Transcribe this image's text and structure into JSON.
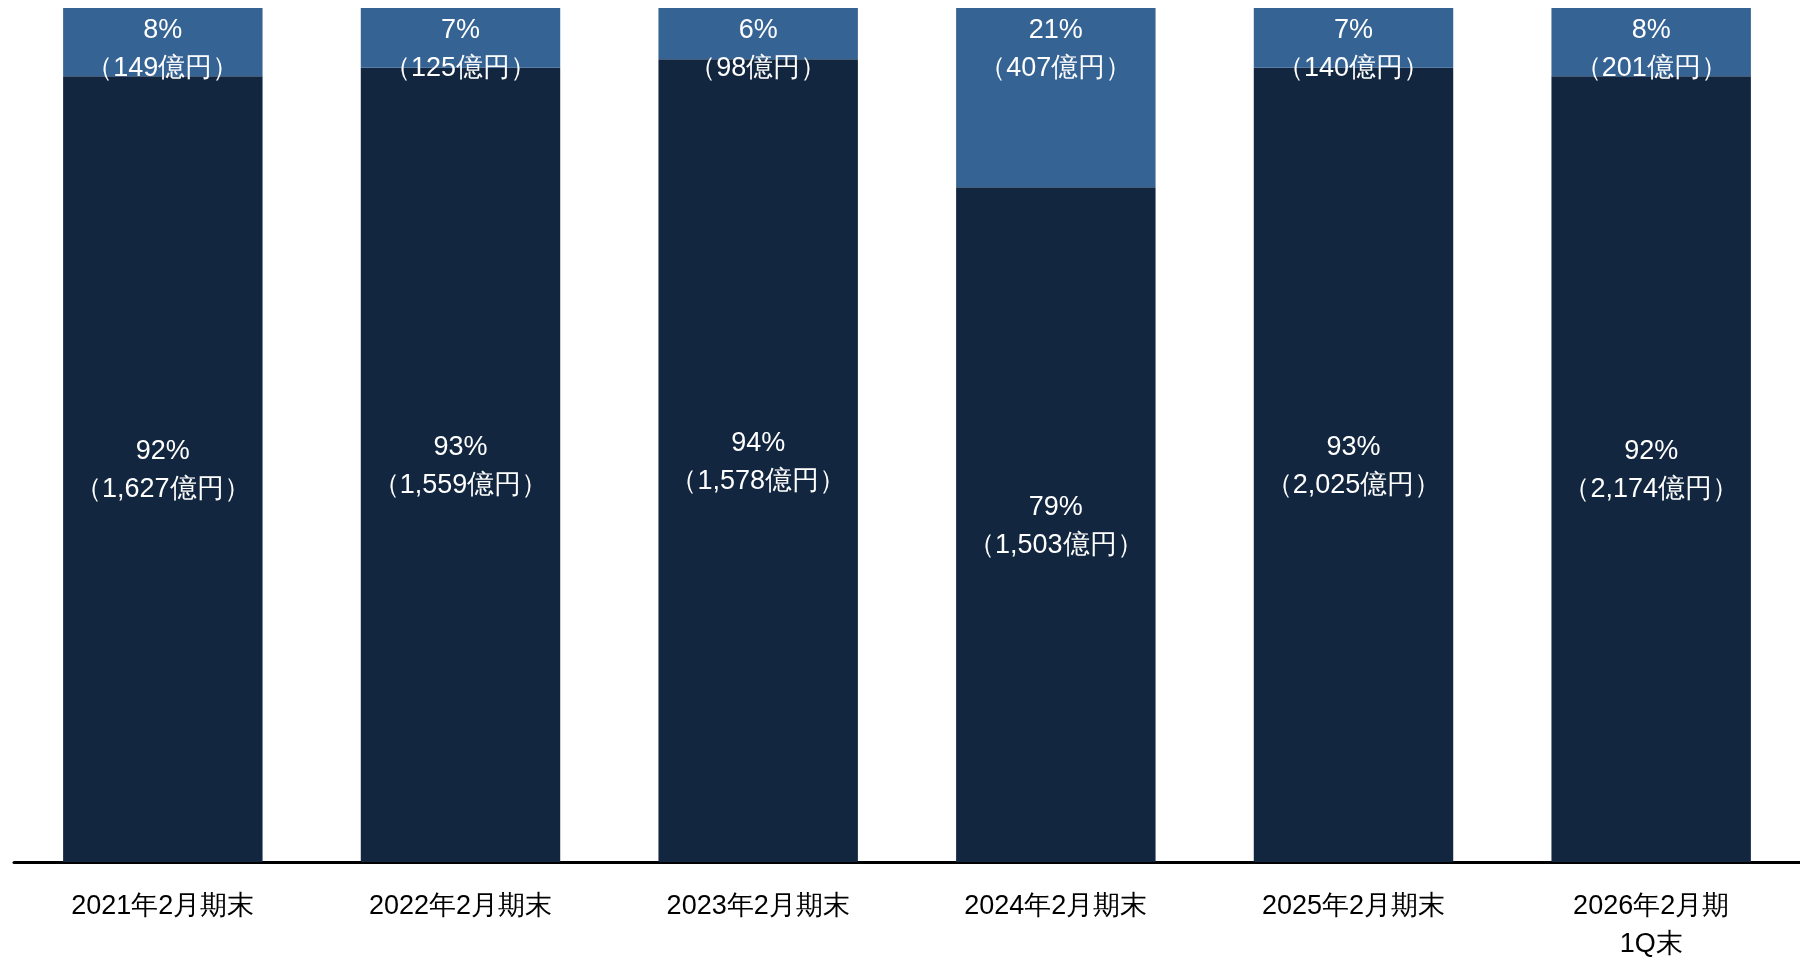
{
  "chart_data": {
    "type": "bar",
    "stacked": true,
    "categories": [
      "2021年2月期末",
      "2022年2月期末",
      "2023年2月期末",
      "2024年2月期末",
      "2025年2月期末",
      "2026年2月期 1Q末"
    ],
    "series": [
      {
        "color": "#12263f",
        "values": [
          92,
          93,
          94,
          79,
          93,
          92
        ],
        "value_labels": [
          "92%\n（1,627億円）",
          "93%\n（1,559億円）",
          "94%\n（1,578億円）",
          "79%\n（1,503億円）",
          "93%\n（2,025億円）",
          "92%\n（2,174億円）"
        ]
      },
      {
        "color": "#356394",
        "values": [
          8,
          7,
          6,
          21,
          7,
          8
        ],
        "value_labels": [
          "8%\n（149億円）",
          "7%\n（125億円）",
          "6%\n（98億円）",
          "21%\n（407億円）",
          "7%\n（140億円）",
          "8%\n（201億円）"
        ]
      }
    ],
    "tick_labels": "x"
  }
}
